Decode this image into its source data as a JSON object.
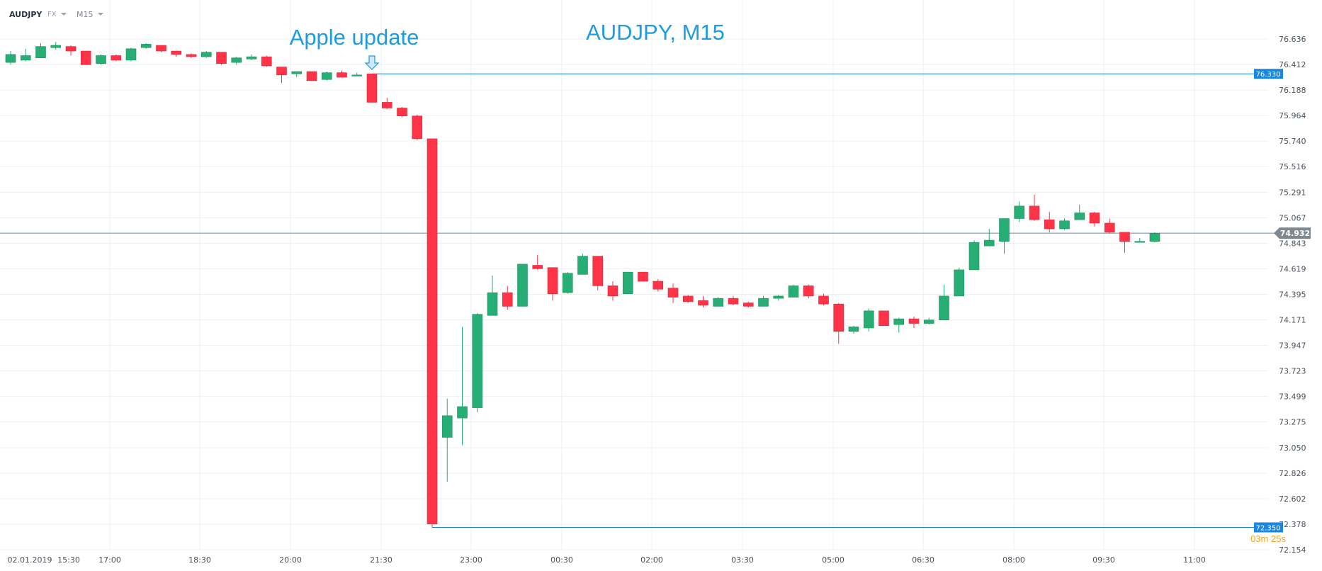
{
  "toolbar": {
    "symbol": "AUDJPY",
    "market": "FX",
    "timeframe": "M15"
  },
  "annotations": {
    "event_label": "Apple update",
    "chart_title": "AUDJPY, M15",
    "timer": "03m 25s"
  },
  "colors": {
    "bull": "#27ae74",
    "bear": "#ff3347",
    "title": "#1f9be2",
    "hline": "#1a86e0",
    "current_tag": "#7e8890",
    "timer": "#f5a623"
  },
  "chart_data": {
    "type": "candlestick",
    "title": "AUDJPY, M15",
    "ylim": [
      72.154,
      76.636
    ],
    "y_ticks": [
      "76.636",
      "76.412",
      "76.188",
      "75.964",
      "75.740",
      "75.516",
      "75.291",
      "75.067",
      "74.843",
      "74.619",
      "74.395",
      "74.171",
      "73.947",
      "73.723",
      "73.499",
      "73.275",
      "73.050",
      "72.826",
      "72.602",
      "72.378",
      "72.154"
    ],
    "x_labels": [
      "02.01.2019",
      "15:30",
      "17:00",
      "18:30",
      "20:00",
      "21:30",
      "23:00",
      "00:30",
      "02:00",
      "03:30",
      "05:00",
      "06:30",
      "08:00",
      "09:30",
      "11:00"
    ],
    "grid": true,
    "levels": [
      {
        "label": "76.330",
        "value": 76.33,
        "from_index": 24
      },
      {
        "label": "72.350",
        "value": 72.35,
        "from_index": 28
      }
    ],
    "current": {
      "label": "74.932",
      "value": 74.932
    },
    "event_index": 24,
    "candles": [
      {
        "o": 76.43,
        "h": 76.53,
        "l": 76.41,
        "c": 76.5
      },
      {
        "o": 76.45,
        "h": 76.55,
        "l": 76.44,
        "c": 76.49
      },
      {
        "o": 76.47,
        "h": 76.6,
        "l": 76.47,
        "c": 76.57
      },
      {
        "o": 76.56,
        "h": 76.61,
        "l": 76.54,
        "c": 76.58
      },
      {
        "o": 76.57,
        "h": 76.58,
        "l": 76.49,
        "c": 76.53
      },
      {
        "o": 76.53,
        "h": 76.53,
        "l": 76.41,
        "c": 76.41
      },
      {
        "o": 76.42,
        "h": 76.5,
        "l": 76.41,
        "c": 76.49
      },
      {
        "o": 76.49,
        "h": 76.5,
        "l": 76.44,
        "c": 76.45
      },
      {
        "o": 76.45,
        "h": 76.56,
        "l": 76.44,
        "c": 76.55
      },
      {
        "o": 76.56,
        "h": 76.6,
        "l": 76.55,
        "c": 76.59
      },
      {
        "o": 76.58,
        "h": 76.58,
        "l": 76.52,
        "c": 76.53
      },
      {
        "o": 76.53,
        "h": 76.53,
        "l": 76.48,
        "c": 76.5
      },
      {
        "o": 76.5,
        "h": 76.51,
        "l": 76.47,
        "c": 76.48
      },
      {
        "o": 76.48,
        "h": 76.53,
        "l": 76.47,
        "c": 76.52
      },
      {
        "o": 76.52,
        "h": 76.52,
        "l": 76.41,
        "c": 76.42
      },
      {
        "o": 76.43,
        "h": 76.48,
        "l": 76.41,
        "c": 76.47
      },
      {
        "o": 76.46,
        "h": 76.5,
        "l": 76.45,
        "c": 76.48
      },
      {
        "o": 76.48,
        "h": 76.49,
        "l": 76.39,
        "c": 76.4
      },
      {
        "o": 76.39,
        "h": 76.39,
        "l": 76.25,
        "c": 76.32
      },
      {
        "o": 76.33,
        "h": 76.35,
        "l": 76.3,
        "c": 76.35
      },
      {
        "o": 76.35,
        "h": 76.35,
        "l": 76.27,
        "c": 76.27
      },
      {
        "o": 76.28,
        "h": 76.35,
        "l": 76.27,
        "c": 76.34
      },
      {
        "o": 76.34,
        "h": 76.36,
        "l": 76.3,
        "c": 76.3
      },
      {
        "o": 76.32,
        "h": 76.34,
        "l": 76.31,
        "c": 76.32
      },
      {
        "o": 76.33,
        "h": 76.33,
        "l": 76.08,
        "c": 76.08
      },
      {
        "o": 76.08,
        "h": 76.12,
        "l": 76.02,
        "c": 76.03
      },
      {
        "o": 76.03,
        "h": 76.04,
        "l": 75.95,
        "c": 75.96
      },
      {
        "o": 75.96,
        "h": 75.97,
        "l": 75.75,
        "c": 75.76
      },
      {
        "o": 75.76,
        "h": 75.76,
        "l": 72.35,
        "c": 72.38
      },
      {
        "o": 73.14,
        "h": 73.48,
        "l": 72.75,
        "c": 73.33
      },
      {
        "o": 73.31,
        "h": 74.11,
        "l": 73.07,
        "c": 73.41
      },
      {
        "o": 73.4,
        "h": 74.23,
        "l": 73.36,
        "c": 74.22
      },
      {
        "o": 74.21,
        "h": 74.56,
        "l": 74.21,
        "c": 74.41
      },
      {
        "o": 74.41,
        "h": 74.47,
        "l": 74.26,
        "c": 74.29
      },
      {
        "o": 74.29,
        "h": 74.66,
        "l": 74.29,
        "c": 74.66
      },
      {
        "o": 74.65,
        "h": 74.74,
        "l": 74.61,
        "c": 74.62
      },
      {
        "o": 74.63,
        "h": 74.63,
        "l": 74.34,
        "c": 74.4
      },
      {
        "o": 74.41,
        "h": 74.59,
        "l": 74.4,
        "c": 74.58
      },
      {
        "o": 74.57,
        "h": 74.75,
        "l": 74.57,
        "c": 74.73
      },
      {
        "o": 74.73,
        "h": 74.73,
        "l": 74.43,
        "c": 74.47
      },
      {
        "o": 74.47,
        "h": 74.51,
        "l": 74.34,
        "c": 74.38
      },
      {
        "o": 74.4,
        "h": 74.59,
        "l": 74.4,
        "c": 74.59
      },
      {
        "o": 74.59,
        "h": 74.59,
        "l": 74.51,
        "c": 74.51
      },
      {
        "o": 74.51,
        "h": 74.53,
        "l": 74.42,
        "c": 74.44
      },
      {
        "o": 74.45,
        "h": 74.49,
        "l": 74.32,
        "c": 74.37
      },
      {
        "o": 74.38,
        "h": 74.39,
        "l": 74.32,
        "c": 74.33
      },
      {
        "o": 74.34,
        "h": 74.38,
        "l": 74.28,
        "c": 74.3
      },
      {
        "o": 74.29,
        "h": 74.37,
        "l": 74.29,
        "c": 74.36
      },
      {
        "o": 74.36,
        "h": 74.38,
        "l": 74.3,
        "c": 74.31
      },
      {
        "o": 74.32,
        "h": 74.33,
        "l": 74.28,
        "c": 74.29
      },
      {
        "o": 74.29,
        "h": 74.38,
        "l": 74.29,
        "c": 74.36
      },
      {
        "o": 74.36,
        "h": 74.39,
        "l": 74.34,
        "c": 74.38
      },
      {
        "o": 74.37,
        "h": 74.48,
        "l": 74.37,
        "c": 74.47
      },
      {
        "o": 74.47,
        "h": 74.48,
        "l": 74.36,
        "c": 74.38
      },
      {
        "o": 74.38,
        "h": 74.4,
        "l": 74.3,
        "c": 74.31
      },
      {
        "o": 74.31,
        "h": 74.32,
        "l": 73.96,
        "c": 74.07
      },
      {
        "o": 74.07,
        "h": 74.12,
        "l": 74.05,
        "c": 74.11
      },
      {
        "o": 74.1,
        "h": 74.27,
        "l": 74.07,
        "c": 74.25
      },
      {
        "o": 74.25,
        "h": 74.25,
        "l": 74.12,
        "c": 74.12
      },
      {
        "o": 74.13,
        "h": 74.19,
        "l": 74.06,
        "c": 74.18
      },
      {
        "o": 74.18,
        "h": 74.2,
        "l": 74.1,
        "c": 74.14
      },
      {
        "o": 74.14,
        "h": 74.19,
        "l": 74.13,
        "c": 74.17
      },
      {
        "o": 74.17,
        "h": 74.48,
        "l": 74.17,
        "c": 74.38
      },
      {
        "o": 74.38,
        "h": 74.63,
        "l": 74.38,
        "c": 74.61
      },
      {
        "o": 74.61,
        "h": 74.87,
        "l": 74.61,
        "c": 74.85
      },
      {
        "o": 74.82,
        "h": 74.97,
        "l": 74.82,
        "c": 74.87
      },
      {
        "o": 74.86,
        "h": 75.06,
        "l": 74.75,
        "c": 75.06
      },
      {
        "o": 75.06,
        "h": 75.21,
        "l": 75.03,
        "c": 75.17
      },
      {
        "o": 75.17,
        "h": 75.27,
        "l": 75.04,
        "c": 75.05
      },
      {
        "o": 75.05,
        "h": 75.12,
        "l": 74.94,
        "c": 74.97
      },
      {
        "o": 74.97,
        "h": 75.06,
        "l": 74.96,
        "c": 75.04
      },
      {
        "o": 75.05,
        "h": 75.18,
        "l": 75.05,
        "c": 75.11
      },
      {
        "o": 75.11,
        "h": 75.12,
        "l": 74.99,
        "c": 75.02
      },
      {
        "o": 75.02,
        "h": 75.06,
        "l": 74.93,
        "c": 74.94
      },
      {
        "o": 74.94,
        "h": 74.94,
        "l": 74.76,
        "c": 74.86
      },
      {
        "o": 74.86,
        "h": 74.89,
        "l": 74.85,
        "c": 74.86
      },
      {
        "o": 74.86,
        "h": 74.94,
        "l": 74.85,
        "c": 74.93
      }
    ]
  }
}
